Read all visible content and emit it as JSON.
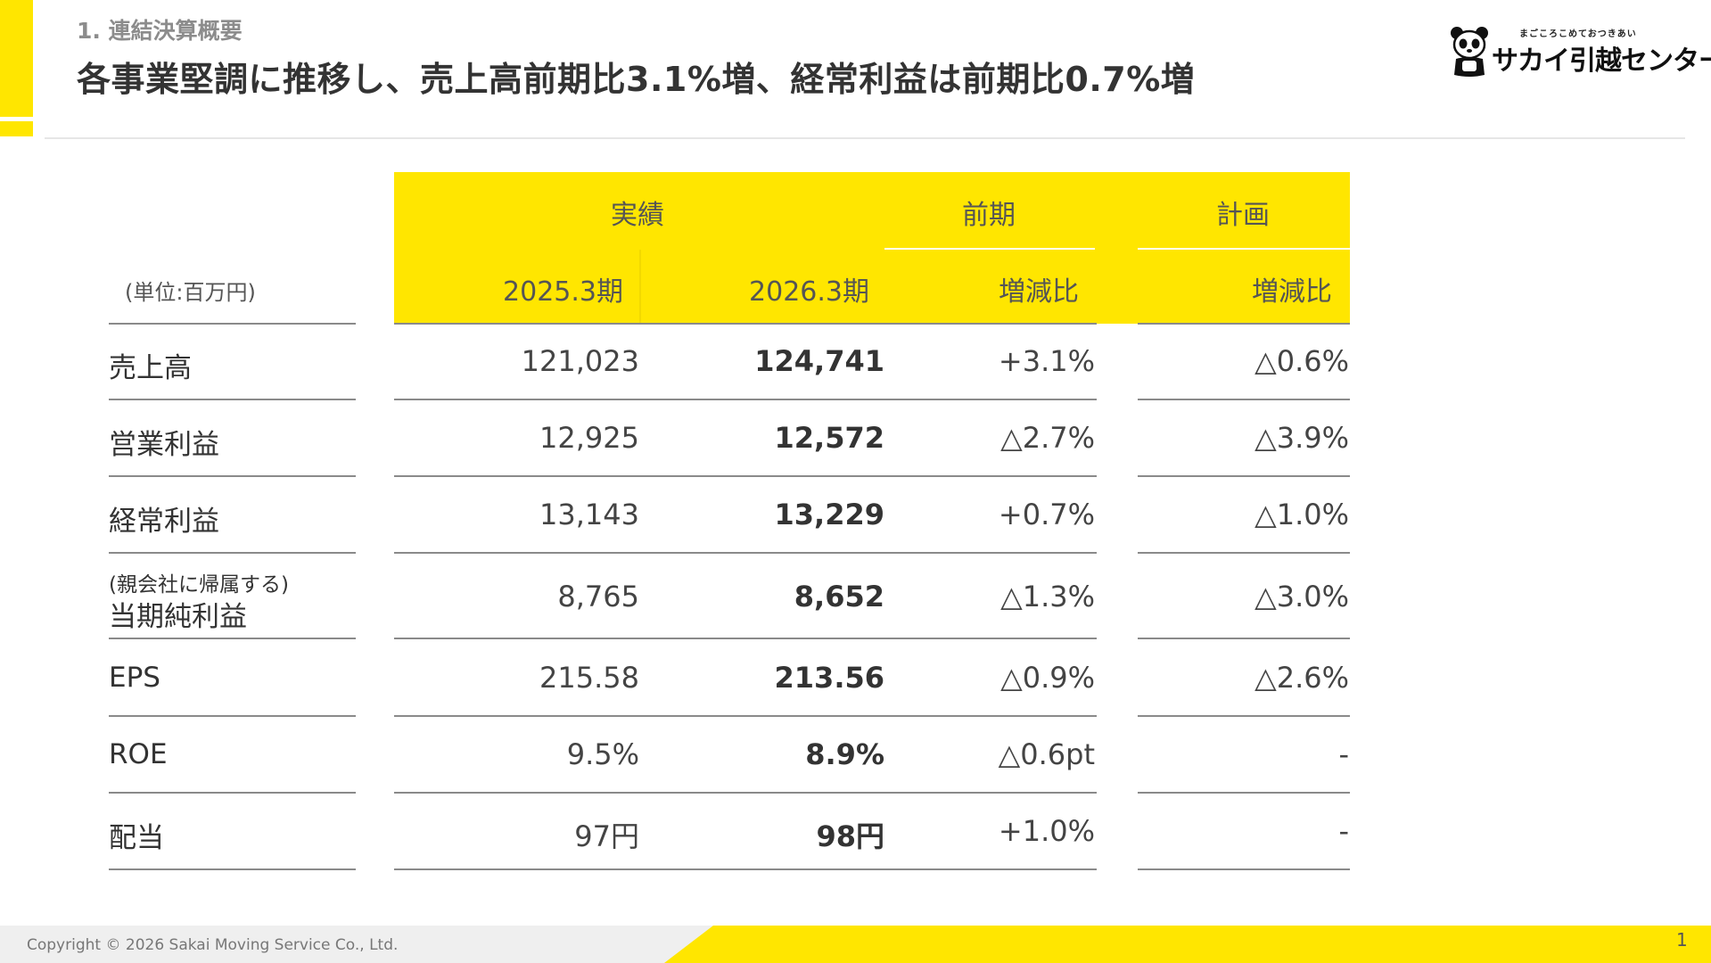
{
  "header": {
    "section_label": "1.  連結決算概要",
    "headline": "各事業堅調に推移し、売上高前期比3.1%増、経常利益は前期比0.7%増"
  },
  "logo": {
    "tagline": "まごころこめておつきあい",
    "name": "サカイ引越センター",
    "icon": "panda-icon"
  },
  "table": {
    "unit": "(単位:百万円)",
    "group_headers": {
      "actual": "実績",
      "previous": "前期",
      "plan": "計画"
    },
    "sub_headers": {
      "fy2025": "2025.3期",
      "fy2026": "2026.3期",
      "prev_change": "増減比",
      "plan_change": "増減比"
    },
    "rows": [
      {
        "label": "売上高",
        "fy2025": "121,023",
        "fy2026": "124,741",
        "prev_change": "+3.1%",
        "plan_change": "△0.6%"
      },
      {
        "label": "営業利益",
        "fy2025": "12,925",
        "fy2026": "12,572",
        "prev_change": "△2.7%",
        "plan_change": "△3.9%"
      },
      {
        "label": "経常利益",
        "fy2025": "13,143",
        "fy2026": "13,229",
        "prev_change": "+0.7%",
        "plan_change": "△1.0%"
      },
      {
        "label_small": "(親会社に帰属する)",
        "label": "当期純利益",
        "fy2025": "8,765",
        "fy2026": "8,652",
        "prev_change": "△1.3%",
        "plan_change": "△3.0%"
      },
      {
        "label": "EPS",
        "fy2025": "215.58",
        "fy2026": "213.56",
        "prev_change": "△0.9%",
        "plan_change": "△2.6%"
      },
      {
        "label": "ROE",
        "fy2025": "9.5%",
        "fy2026": "8.9%",
        "prev_change": "△0.6pt",
        "plan_change": "-"
      },
      {
        "label": "配当",
        "fy2025": "97円",
        "fy2026": "98円",
        "prev_change": "+1.0%",
        "plan_change": "-"
      }
    ]
  },
  "footer": {
    "copyright": "Copyright © 2026 Sakai Moving Service Co., Ltd.",
    "page_number": "1"
  },
  "colors": {
    "accent": "#FFE600",
    "text": "#333333",
    "rule": "#8a8a8a"
  }
}
